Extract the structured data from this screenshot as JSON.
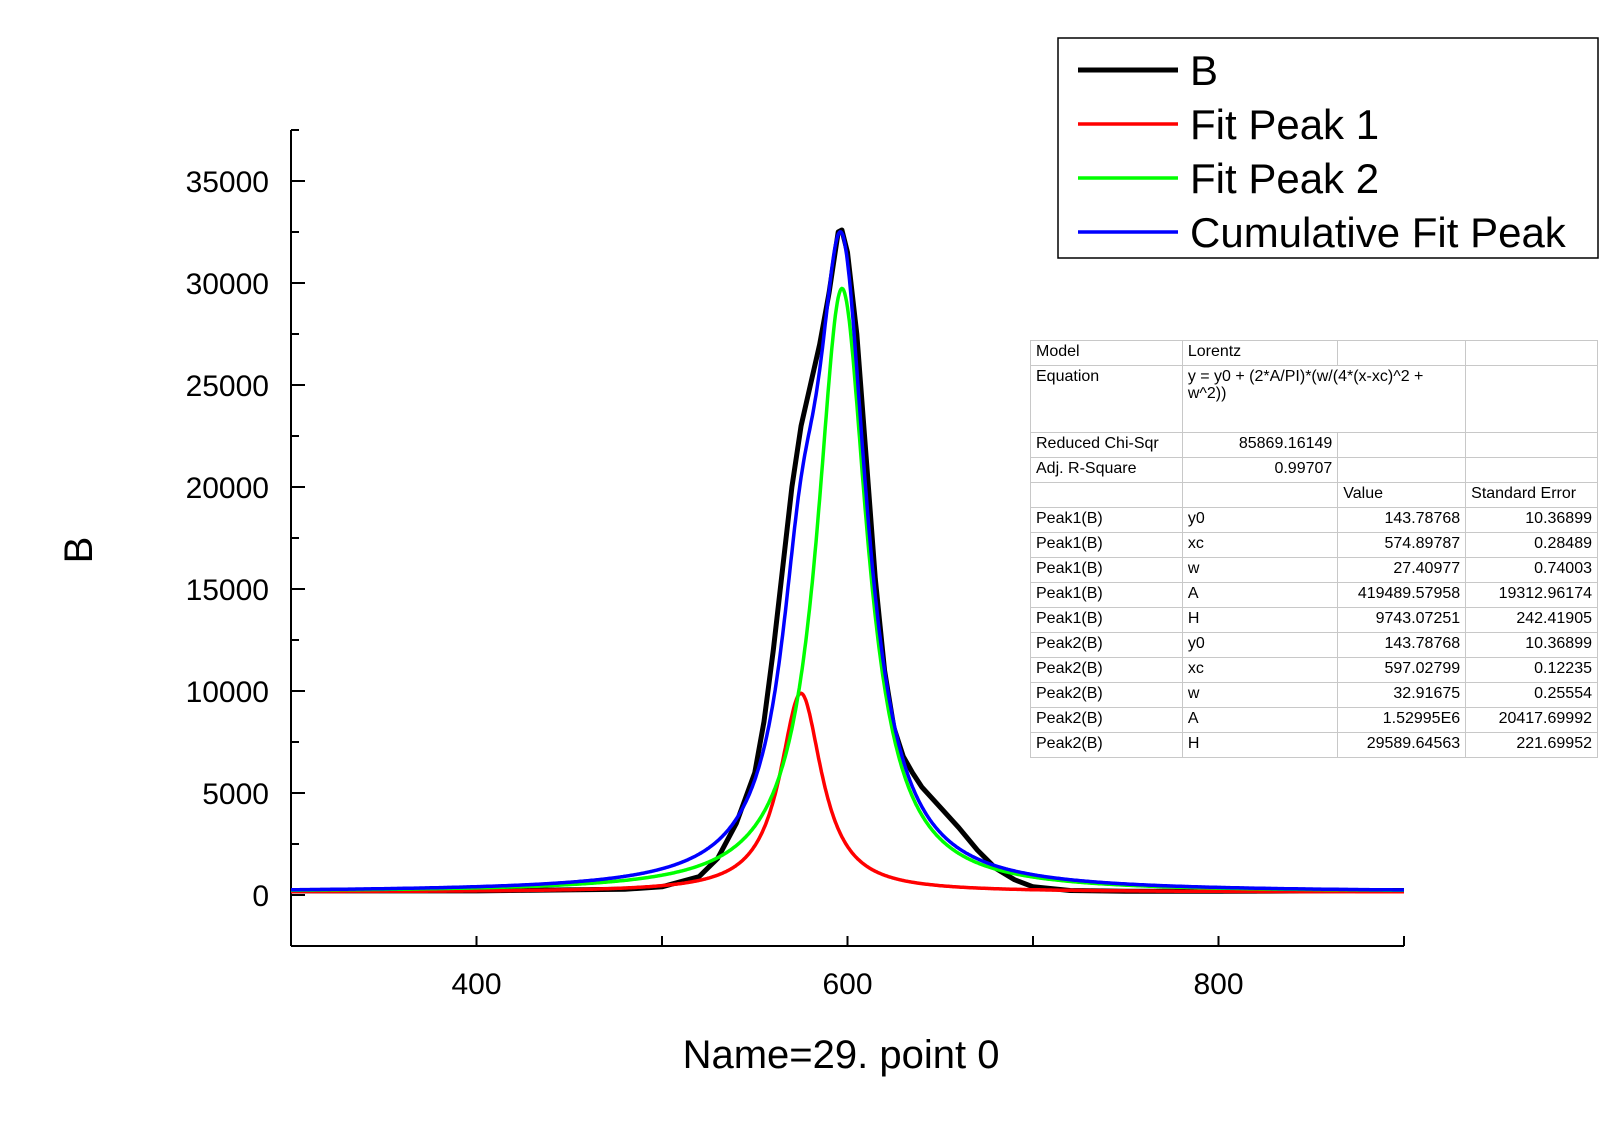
{
  "chart_data": {
    "type": "line",
    "title": "",
    "xlabel": "Name=29. point 0",
    "ylabel": "B",
    "xlim": [
      300,
      900
    ],
    "ylim": [
      -2500,
      37500
    ],
    "x_ticks": [
      400,
      600,
      800
    ],
    "y_ticks": [
      0,
      5000,
      10000,
      15000,
      20000,
      25000,
      30000,
      35000
    ],
    "legend_position": "top-right",
    "series": [
      {
        "name": "B",
        "color": "#000000",
        "x": [
          300,
          400,
          480,
          500,
          520,
          530,
          540,
          550,
          555,
          560,
          565,
          570,
          575,
          580,
          585,
          590,
          595,
          597,
          600,
          605,
          610,
          615,
          620,
          625,
          630,
          635,
          640,
          650,
          660,
          670,
          680,
          690,
          700,
          720,
          750,
          800,
          850,
          900
        ],
        "values": [
          200,
          200,
          280,
          400,
          900,
          1800,
          3500,
          6000,
          8500,
          12000,
          16000,
          20000,
          23000,
          25000,
          27000,
          29500,
          32500,
          32600,
          31500,
          27500,
          21500,
          15500,
          11000,
          8200,
          6800,
          6000,
          5300,
          4300,
          3300,
          2200,
          1300,
          750,
          400,
          220,
          180,
          180,
          200,
          220
        ]
      },
      {
        "name": "Fit Peak 1",
        "color": "#ff0000",
        "model": "lorentz",
        "params": {
          "y0": 143.78768,
          "xc": 574.89787,
          "w": 27.40977,
          "A": 419489.57958
        }
      },
      {
        "name": "Fit Peak 2",
        "color": "#00ff00",
        "model": "lorentz",
        "params": {
          "y0": 143.78768,
          "xc": 597.02799,
          "w": 32.91675,
          "A": 1529950
        }
      },
      {
        "name": "Cumulative Fit Peak",
        "color": "#0000ff",
        "model": "lorentz-sum",
        "components": [
          "Fit Peak 1",
          "Fit Peak 2"
        ],
        "y0": 143.78768
      }
    ]
  },
  "fit_table": {
    "model_label": "Model",
    "model_value": "Lorentz",
    "equation_label": "Equation",
    "equation_value": "y = y0 + (2*A/PI)*(w/(4*(x-xc)^2 + w^2))",
    "chi_label": "Reduced Chi-Sqr",
    "chi_value": "85869.16149",
    "r2_label": "Adj. R-Square",
    "r2_value": "0.99707",
    "value_header": "Value",
    "stderr_header": "Standard Error",
    "rows": [
      [
        "Peak1(B)",
        "y0",
        "143.78768",
        "10.36899"
      ],
      [
        "Peak1(B)",
        "xc",
        "574.89787",
        "0.28489"
      ],
      [
        "Peak1(B)",
        "w",
        "27.40977",
        "0.74003"
      ],
      [
        "Peak1(B)",
        "A",
        "419489.57958",
        "19312.96174"
      ],
      [
        "Peak1(B)",
        "H",
        "9743.07251",
        "242.41905"
      ],
      [
        "Peak2(B)",
        "y0",
        "143.78768",
        "10.36899"
      ],
      [
        "Peak2(B)",
        "xc",
        "597.02799",
        "0.12235"
      ],
      [
        "Peak2(B)",
        "w",
        "32.91675",
        "0.25554"
      ],
      [
        "Peak2(B)",
        "A",
        "1.52995E6",
        "20417.69992"
      ],
      [
        "Peak2(B)",
        "H",
        "29589.64563",
        "221.69952"
      ]
    ]
  }
}
